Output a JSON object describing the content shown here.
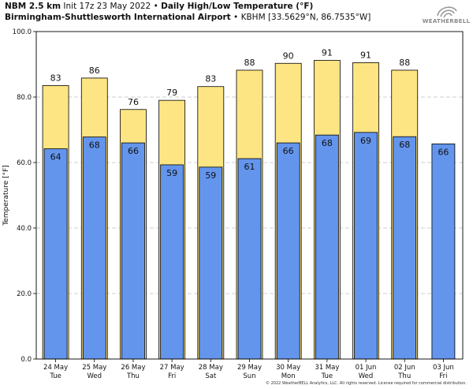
{
  "header": {
    "model": "NBM 2.5 km",
    "init": "Init 17z 23 May 2022",
    "separator": "•",
    "product": "Daily High/Low Temperature (°F)",
    "location": "Birmingham-Shuttlesworth International Airport",
    "station": "KBHM [33.5629°N, 86.7535°W]"
  },
  "logo": {
    "text": "WEATHERBELL",
    "icon": "weatherbell-swirl-logo"
  },
  "copyright": "© 2022 WeatherBELL Analytics, LLC. All rights reserved. License required for commercial distribution.",
  "chart_data": {
    "type": "bar",
    "ylabel": "Temperature [°F]",
    "ylim": [
      0,
      100
    ],
    "yticks": [
      0,
      20,
      40,
      60,
      80,
      100
    ],
    "ytick_labels": [
      "0.0",
      "20.0",
      "40.0",
      "60.0",
      "80.0",
      "100.0"
    ],
    "grid": true,
    "categories": [
      {
        "date": "24 May",
        "day": "Tue"
      },
      {
        "date": "25 May",
        "day": "Wed"
      },
      {
        "date": "26 May",
        "day": "Thu"
      },
      {
        "date": "27 May",
        "day": "Fri"
      },
      {
        "date": "28 May",
        "day": "Sat"
      },
      {
        "date": "29 May",
        "day": "Sun"
      },
      {
        "date": "30 May",
        "day": "Mon"
      },
      {
        "date": "31 May",
        "day": "Tue"
      },
      {
        "date": "01 Jun",
        "day": "Wed"
      },
      {
        "date": "02 Jun",
        "day": "Thu"
      },
      {
        "date": "03 Jun",
        "day": "Fri"
      }
    ],
    "series": [
      {
        "key": "high",
        "color": "#fde583",
        "values": [
          83.5,
          85.8,
          76.2,
          79.0,
          83.2,
          88.2,
          90.3,
          91.2,
          90.5,
          88.2,
          null
        ],
        "labels": [
          "83",
          "86",
          "76",
          "79",
          "83",
          "88",
          "90",
          "91",
          "91",
          "88",
          ""
        ]
      },
      {
        "key": "low",
        "color": "#6495ed",
        "values": [
          64.2,
          67.8,
          66.0,
          59.3,
          58.6,
          61.2,
          66.0,
          68.4,
          69.2,
          67.9,
          65.7
        ],
        "labels": [
          "64",
          "68",
          "66",
          "59",
          "59",
          "61",
          "66",
          "68",
          "69",
          "68",
          "66"
        ]
      }
    ]
  }
}
